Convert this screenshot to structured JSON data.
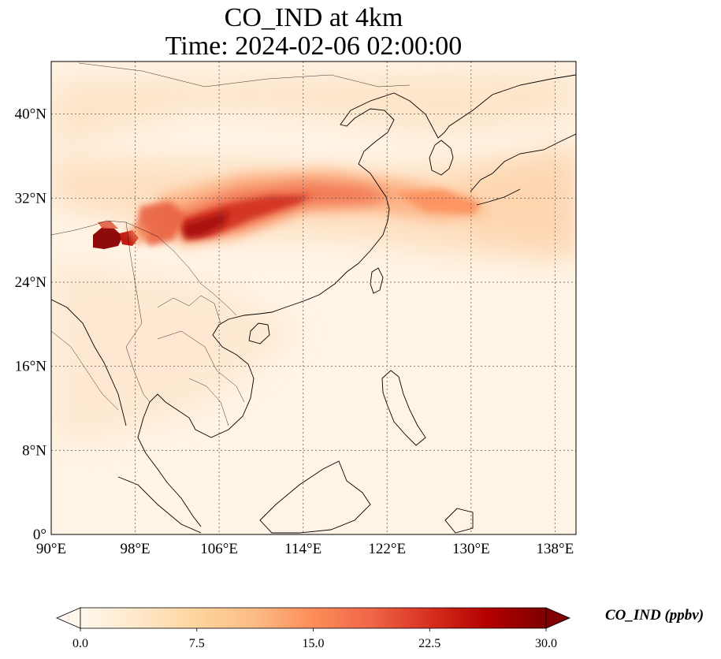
{
  "title_line1": "CO_IND at 4km",
  "title_line2": "Time: 2024-02-06 02:00:00",
  "map": {
    "extent": {
      "lon_min": 90,
      "lon_max": 140,
      "lat_min": 0,
      "lat_max": 45
    },
    "lon_ticks": [
      90,
      98,
      106,
      114,
      122,
      130,
      138
    ],
    "lat_ticks": [
      0,
      8,
      16,
      24,
      32,
      40
    ],
    "lon_tick_labels": [
      "90°E",
      "98°E",
      "106°E",
      "114°E",
      "122°E",
      "130°E",
      "138°E"
    ],
    "lat_tick_labels": [
      "0°",
      "8°N",
      "16°N",
      "24°N",
      "32°N",
      "40°N"
    ],
    "gridlines": "dotted",
    "colormap": "OrRd",
    "colormap_stops": [
      "#fff7ec",
      "#fee8c8",
      "#fdd49e",
      "#fdbb84",
      "#fc8d59",
      "#ef6548",
      "#d7301f",
      "#b30000",
      "#7f0000"
    ]
  },
  "colorbar": {
    "label": "CO_IND (ppbv)",
    "min": 0.0,
    "max": 30.0,
    "ticks": [
      0.0,
      7.5,
      15.0,
      22.5,
      30.0
    ],
    "tick_labels": [
      "0.0",
      "7.5",
      "15.0",
      "22.5",
      "30.0"
    ],
    "extend": "both"
  }
}
